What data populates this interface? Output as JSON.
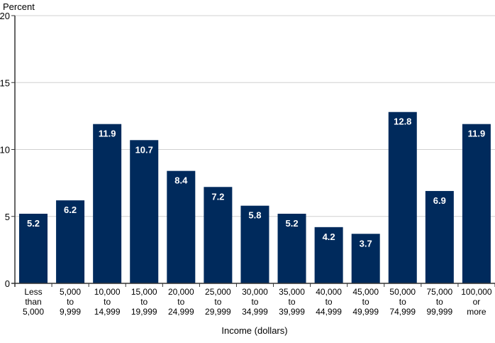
{
  "chart_data": {
    "type": "bar",
    "title": "",
    "ylabel": "Percent",
    "xlabel": "Income (dollars)",
    "ylim": [
      0,
      20
    ],
    "yticks": [
      0,
      5,
      10,
      15,
      20
    ],
    "grid": true,
    "bar_color": "#002a5c",
    "categories": [
      [
        "Less",
        "than",
        "5,000"
      ],
      [
        "5,000",
        "to",
        "9,999"
      ],
      [
        "10,000",
        "to",
        "14,999"
      ],
      [
        "15,000",
        "to",
        "19,999"
      ],
      [
        "20,000",
        "to",
        "24,999"
      ],
      [
        "25,000",
        "to",
        "29,999"
      ],
      [
        "30,000",
        "to",
        "34,999"
      ],
      [
        "35,000",
        "to",
        "39,999"
      ],
      [
        "40,000",
        "to",
        "44,999"
      ],
      [
        "45,000",
        "to",
        "49,999"
      ],
      [
        "50,000",
        "to",
        "74,999"
      ],
      [
        "75,000",
        "to",
        "99,999"
      ],
      [
        "100,000",
        "or",
        "more"
      ]
    ],
    "values": [
      5.2,
      6.2,
      11.9,
      10.7,
      8.4,
      7.2,
      5.8,
      5.2,
      4.2,
      3.7,
      12.8,
      6.9,
      11.9
    ],
    "value_labels": [
      "5.2",
      "6.2",
      "11.9",
      "10.7",
      "8.4",
      "7.2",
      "5.8",
      "5.2",
      "4.2",
      "3.7",
      "12.8",
      "6.9",
      "11.9"
    ]
  }
}
